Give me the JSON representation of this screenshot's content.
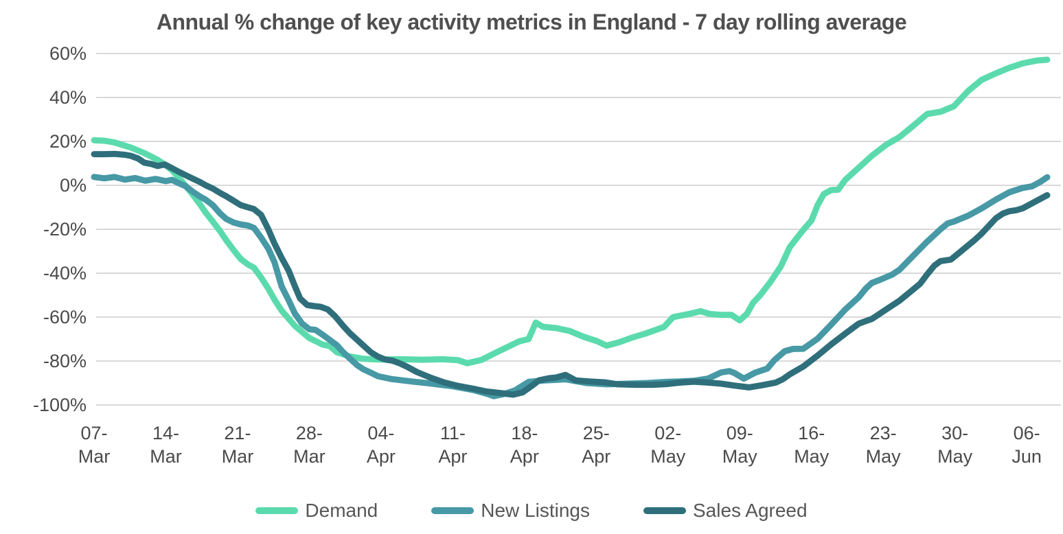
{
  "chart_data": {
    "type": "line",
    "title": "Annual % change of key activity metrics in England - 7 day rolling average",
    "xlabel": "",
    "ylabel": "",
    "ylim": [
      -100,
      60
    ],
    "grid": "horizontal",
    "legend_position": "bottom",
    "grid_color": "#d9d9d9",
    "axis_text_color": "#4a4a4a",
    "title_color": "#4f4f4f",
    "y_axis": {
      "tick_values": [
        60,
        40,
        20,
        0,
        -20,
        -40,
        -60,
        -80,
        -100
      ],
      "tick_labels": [
        "60%",
        "40%",
        "20%",
        "0%",
        "-20%",
        "-40%",
        "-60%",
        "-80%",
        "-100%"
      ]
    },
    "x_axis": {
      "unit": "days from 07-Mar, weekly ticks",
      "ticks": [
        {
          "day": 0,
          "line1": "07-",
          "line2": "Mar"
        },
        {
          "day": 7,
          "line1": "14-",
          "line2": "Mar"
        },
        {
          "day": 14,
          "line1": "21-",
          "line2": "Mar"
        },
        {
          "day": 21,
          "line1": "28-",
          "line2": "Mar"
        },
        {
          "day": 28,
          "line1": "04-",
          "line2": "Apr"
        },
        {
          "day": 35,
          "line1": "11-",
          "line2": "Apr"
        },
        {
          "day": 42,
          "line1": "18-",
          "line2": "Apr"
        },
        {
          "day": 49,
          "line1": "25-",
          "line2": "Apr"
        },
        {
          "day": 56,
          "line1": "02-",
          "line2": "May"
        },
        {
          "day": 63,
          "line1": "09-",
          "line2": "May"
        },
        {
          "day": 70,
          "line1": "16-",
          "line2": "May"
        },
        {
          "day": 77,
          "line1": "23-",
          "line2": "May"
        },
        {
          "day": 84,
          "line1": "30-",
          "line2": "May"
        },
        {
          "day": 91,
          "line1": "06-",
          "line2": "Jun"
        }
      ]
    },
    "series": [
      {
        "name": "Demand",
        "color": "#5bdbad",
        "points": [
          [
            0,
            20.5
          ],
          [
            1,
            20.3
          ],
          [
            2,
            19.5
          ],
          [
            3.6,
            17.2
          ],
          [
            4.9,
            14.7
          ],
          [
            6.2,
            11.6
          ],
          [
            6.9,
            9.4
          ],
          [
            7.6,
            6.9
          ],
          [
            8.2,
            3.8
          ],
          [
            8.9,
            0
          ],
          [
            9.6,
            -4.1
          ],
          [
            10.3,
            -8.4
          ],
          [
            10.9,
            -12.5
          ],
          [
            11.6,
            -16.6
          ],
          [
            12.3,
            -20.9
          ],
          [
            12.9,
            -25
          ],
          [
            13.6,
            -29.4
          ],
          [
            14.3,
            -33.5
          ],
          [
            15,
            -36
          ],
          [
            15.6,
            -37.5
          ],
          [
            16.3,
            -42
          ],
          [
            17,
            -47
          ],
          [
            17.6,
            -52
          ],
          [
            18.3,
            -57
          ],
          [
            19.6,
            -64
          ],
          [
            21,
            -69.5
          ],
          [
            22.3,
            -72.5
          ],
          [
            23,
            -73.2
          ],
          [
            23.7,
            -76
          ],
          [
            25,
            -78
          ],
          [
            26.3,
            -79
          ],
          [
            27.7,
            -79.3
          ],
          [
            30,
            -79.2
          ],
          [
            32,
            -79.4
          ],
          [
            34,
            -79.2
          ],
          [
            35.5,
            -79.6
          ],
          [
            36.4,
            -81
          ],
          [
            37.8,
            -79.5
          ],
          [
            39.5,
            -75.5
          ],
          [
            40.4,
            -73.5
          ],
          [
            41.5,
            -71
          ],
          [
            42.4,
            -70
          ],
          [
            43.1,
            -62.5
          ],
          [
            43.8,
            -64.4
          ],
          [
            45.1,
            -65
          ],
          [
            46.4,
            -66.3
          ],
          [
            47.8,
            -69
          ],
          [
            49.1,
            -71
          ],
          [
            50,
            -73
          ],
          [
            51.2,
            -71.5
          ],
          [
            52.5,
            -69.3
          ],
          [
            53.8,
            -67.5
          ],
          [
            55.6,
            -64.5
          ],
          [
            56.5,
            -60
          ],
          [
            57.8,
            -58.8
          ],
          [
            59.2,
            -57.3
          ],
          [
            60,
            -58.5
          ],
          [
            61.2,
            -59
          ],
          [
            62.2,
            -59
          ],
          [
            63,
            -61.5
          ],
          [
            63.7,
            -58.5
          ],
          [
            64.3,
            -53.5
          ],
          [
            65,
            -50
          ],
          [
            66,
            -44
          ],
          [
            67,
            -37
          ],
          [
            67.9,
            -28
          ],
          [
            69.2,
            -20.3
          ],
          [
            70,
            -16
          ],
          [
            70.6,
            -9
          ],
          [
            71.2,
            -4
          ],
          [
            71.9,
            -2.2
          ],
          [
            72.6,
            -2
          ],
          [
            73.3,
            2.5
          ],
          [
            74.6,
            8
          ],
          [
            75.9,
            13.5
          ],
          [
            77.3,
            18.5
          ],
          [
            78.6,
            22
          ],
          [
            79.9,
            27
          ],
          [
            81.3,
            32.5
          ],
          [
            82.6,
            33.5
          ],
          [
            83.9,
            36
          ],
          [
            85.3,
            43
          ],
          [
            86.6,
            48
          ],
          [
            88,
            51
          ],
          [
            89.3,
            53.5
          ],
          [
            90.6,
            55.5
          ],
          [
            92,
            56.8
          ],
          [
            93,
            57.2
          ]
        ]
      },
      {
        "name": "New Listings",
        "color": "#4799a5",
        "points": [
          [
            0,
            3.8
          ],
          [
            1,
            3.2
          ],
          [
            2,
            3.8
          ],
          [
            3,
            2.6
          ],
          [
            4,
            3.3
          ],
          [
            5,
            2.1
          ],
          [
            6,
            2.9
          ],
          [
            7,
            1.9
          ],
          [
            7.6,
            2.5
          ],
          [
            8.2,
            1.1
          ],
          [
            8.9,
            -0.3
          ],
          [
            9.6,
            -2.8
          ],
          [
            10.3,
            -5
          ],
          [
            10.9,
            -6.6
          ],
          [
            11.6,
            -9.1
          ],
          [
            12.3,
            -12.8
          ],
          [
            12.9,
            -15.3
          ],
          [
            13.6,
            -16.9
          ],
          [
            14.3,
            -17.8
          ],
          [
            15,
            -18.3
          ],
          [
            15.6,
            -19.4
          ],
          [
            16.3,
            -23.8
          ],
          [
            17,
            -28.8
          ],
          [
            17.6,
            -35
          ],
          [
            18.3,
            -46
          ],
          [
            19,
            -52.5
          ],
          [
            19.6,
            -58.4
          ],
          [
            20.3,
            -63
          ],
          [
            21,
            -65.5
          ],
          [
            21.6,
            -65.8
          ],
          [
            22.3,
            -68
          ],
          [
            23.7,
            -72.8
          ],
          [
            24.3,
            -76
          ],
          [
            25,
            -79
          ],
          [
            25.7,
            -82
          ],
          [
            26.3,
            -83.8
          ],
          [
            27,
            -85.3
          ],
          [
            27.7,
            -86.9
          ],
          [
            29,
            -88.2
          ],
          [
            31,
            -89.3
          ],
          [
            33,
            -90.3
          ],
          [
            35,
            -91.5
          ],
          [
            37,
            -93.2
          ],
          [
            38.4,
            -95
          ],
          [
            39,
            -96
          ],
          [
            40,
            -95
          ],
          [
            41.1,
            -93.3
          ],
          [
            42.4,
            -89.5
          ],
          [
            44,
            -88.8
          ],
          [
            46,
            -88.3
          ],
          [
            48,
            -90
          ],
          [
            50,
            -90.6
          ],
          [
            52,
            -90.3
          ],
          [
            54,
            -90
          ],
          [
            55.8,
            -89.5
          ],
          [
            57.2,
            -89.3
          ],
          [
            58.5,
            -89
          ],
          [
            59.9,
            -88
          ],
          [
            61.2,
            -85.2
          ],
          [
            62,
            -84.6
          ],
          [
            62.5,
            -85.5
          ],
          [
            63.4,
            -88
          ],
          [
            64.5,
            -85.3
          ],
          [
            65.7,
            -83.4
          ],
          [
            66.4,
            -79.5
          ],
          [
            67.4,
            -75.5
          ],
          [
            68.2,
            -74.5
          ],
          [
            69.2,
            -74.4
          ],
          [
            70.6,
            -69.8
          ],
          [
            71.9,
            -63.5
          ],
          [
            73.3,
            -56.5
          ],
          [
            74.6,
            -51
          ],
          [
            75.3,
            -47
          ],
          [
            75.9,
            -44.4
          ],
          [
            76.6,
            -43.2
          ],
          [
            77.9,
            -40.6
          ],
          [
            78.6,
            -38.4
          ],
          [
            79.9,
            -32.2
          ],
          [
            81.3,
            -25.6
          ],
          [
            82.6,
            -20
          ],
          [
            83.3,
            -17.3
          ],
          [
            83.9,
            -16.5
          ],
          [
            85.3,
            -13.8
          ],
          [
            86.6,
            -10.5
          ],
          [
            88,
            -6.5
          ],
          [
            89.3,
            -3.2
          ],
          [
            90.6,
            -1.2
          ],
          [
            91.5,
            -0.5
          ],
          [
            92.3,
            1.5
          ],
          [
            93,
            3.7
          ]
        ]
      },
      {
        "name": "Sales Agreed",
        "color": "#2f6f7b",
        "points": [
          [
            0,
            14.2
          ],
          [
            1,
            14.2
          ],
          [
            2,
            14.3
          ],
          [
            3,
            13.9
          ],
          [
            3.6,
            13.4
          ],
          [
            4.3,
            12.2
          ],
          [
            4.9,
            10.3
          ],
          [
            5.6,
            9.7
          ],
          [
            6.2,
            8.8
          ],
          [
            6.9,
            9.5
          ],
          [
            7.6,
            7.8
          ],
          [
            8.2,
            6.3
          ],
          [
            8.9,
            4.7
          ],
          [
            9.6,
            3.1
          ],
          [
            10.3,
            1.6
          ],
          [
            10.9,
            0
          ],
          [
            11.6,
            -1.5
          ],
          [
            12.3,
            -3.5
          ],
          [
            12.9,
            -5
          ],
          [
            13.6,
            -7
          ],
          [
            14.3,
            -9
          ],
          [
            15,
            -10
          ],
          [
            15.6,
            -10.8
          ],
          [
            16.3,
            -13.5
          ],
          [
            17,
            -20
          ],
          [
            17.6,
            -26.5
          ],
          [
            18.3,
            -33
          ],
          [
            19,
            -39
          ],
          [
            19.6,
            -46
          ],
          [
            20.1,
            -51.5
          ],
          [
            20.8,
            -54.5
          ],
          [
            21.5,
            -55
          ],
          [
            22.1,
            -55.3
          ],
          [
            22.8,
            -56.5
          ],
          [
            23.5,
            -59.5
          ],
          [
            24.3,
            -64
          ],
          [
            25,
            -67.5
          ],
          [
            25.7,
            -70.5
          ],
          [
            26.3,
            -73
          ],
          [
            27,
            -76
          ],
          [
            27.7,
            -78
          ],
          [
            28.4,
            -79.3
          ],
          [
            29.1,
            -79.8
          ],
          [
            29.8,
            -81
          ],
          [
            30.5,
            -82.5
          ],
          [
            31.5,
            -85
          ],
          [
            32.8,
            -87.5
          ],
          [
            34.2,
            -89.8
          ],
          [
            35.5,
            -91.3
          ],
          [
            36.9,
            -92.5
          ],
          [
            38.2,
            -93.8
          ],
          [
            39.5,
            -94.5
          ],
          [
            40.9,
            -95.3
          ],
          [
            41.8,
            -94.3
          ],
          [
            42.8,
            -91
          ],
          [
            43.4,
            -88.8
          ],
          [
            44.4,
            -87.8
          ],
          [
            45.1,
            -87.5
          ],
          [
            46,
            -86.3
          ],
          [
            47,
            -88.8
          ],
          [
            48.4,
            -89.3
          ],
          [
            49.8,
            -89.7
          ],
          [
            51.1,
            -90.6
          ],
          [
            52.8,
            -90.8
          ],
          [
            54.5,
            -90.8
          ],
          [
            55.8,
            -90.5
          ],
          [
            57.2,
            -89.8
          ],
          [
            58.5,
            -89.4
          ],
          [
            59.9,
            -89.8
          ],
          [
            61.2,
            -90.3
          ],
          [
            62.5,
            -91.2
          ],
          [
            63.9,
            -92
          ],
          [
            65.2,
            -91
          ],
          [
            66.5,
            -89.8
          ],
          [
            67.2,
            -88.3
          ],
          [
            67.9,
            -86
          ],
          [
            69.2,
            -82.5
          ],
          [
            70.6,
            -77.5
          ],
          [
            71.9,
            -72.5
          ],
          [
            73.3,
            -67.5
          ],
          [
            74.6,
            -63
          ],
          [
            75.3,
            -61.8
          ],
          [
            75.9,
            -60.8
          ],
          [
            77.3,
            -56.5
          ],
          [
            78.6,
            -52.5
          ],
          [
            79.9,
            -47.5
          ],
          [
            80.6,
            -44.8
          ],
          [
            81.3,
            -40.5
          ],
          [
            82,
            -36.5
          ],
          [
            82.6,
            -34.5
          ],
          [
            83.6,
            -33.8
          ],
          [
            84.6,
            -30
          ],
          [
            85.9,
            -25
          ],
          [
            86.6,
            -22
          ],
          [
            87.3,
            -18.5
          ],
          [
            88,
            -15
          ],
          [
            88.7,
            -12.8
          ],
          [
            89.3,
            -11.8
          ],
          [
            90,
            -11.3
          ],
          [
            90.6,
            -10.5
          ],
          [
            92,
            -7
          ],
          [
            93,
            -4.5
          ]
        ]
      }
    ]
  }
}
